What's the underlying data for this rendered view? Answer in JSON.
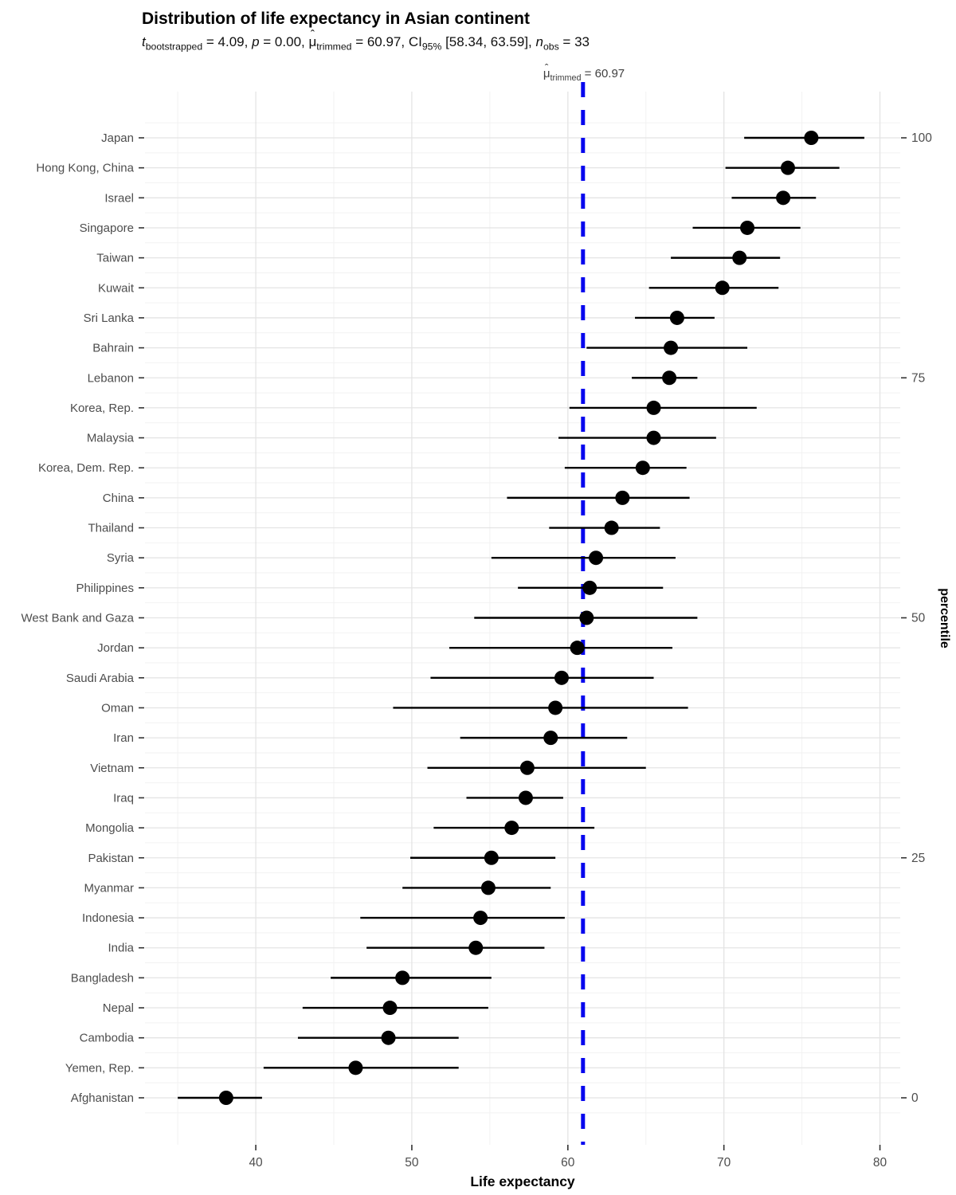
{
  "title": "Distribution of life expectancy in Asian continent",
  "subtitle": {
    "t": "t",
    "t_sub": "bootstrapped",
    "s1": " = 4.09, ",
    "p": "p",
    "s2": " = 0.00, ",
    "mu": "μ",
    "hat": "ˆ",
    "mu_sub": "trimmed",
    "s3": " = 60.97, ",
    "ci": "CI",
    "ci_sub": "95%",
    "s4": " [58.34, 63.59], ",
    "n": "n",
    "n_sub": "obs",
    "s5": " = 33"
  },
  "annotation": {
    "mu": "μ",
    "hat": "ˆ",
    "mu_sub": "trimmed",
    "s": " = 60.97"
  },
  "colors": {
    "point": "#000000",
    "ci_line": "#000000",
    "test_line": "#0707EE",
    "gridline_major": "#e4e4e4",
    "gridline_minor": "#f2f2f2",
    "axis_text": "#4d4d4d",
    "tick": "#333333",
    "axis_title": "#000000"
  },
  "chart_data": {
    "type": "scatter",
    "subtype": "dot-whisker / one-sample test (ggdotplotstats)",
    "title": "Distribution of life expectancy in Asian continent",
    "xlabel": "Life expectancy",
    "ylabel_right": "percentile",
    "x_ticks": [
      40,
      50,
      60,
      70,
      80
    ],
    "x_minor_ticks": [
      35,
      45,
      55,
      65,
      75
    ],
    "xlim": [
      32.9,
      81.3
    ],
    "grid": true,
    "test_line": {
      "label_value": 60.97,
      "style": "dashed"
    },
    "percentile_breaks": [
      {
        "label": "100",
        "row": 0
      },
      {
        "label": "75",
        "row": 8
      },
      {
        "label": "50",
        "row": 16
      },
      {
        "label": "25",
        "row": 24
      },
      {
        "label": "0",
        "row": 32
      }
    ],
    "series": [
      {
        "label": "Japan",
        "value": 75.6,
        "ci": [
          71.3,
          79.0
        ]
      },
      {
        "label": "Hong Kong, China",
        "value": 74.1,
        "ci": [
          70.1,
          77.4
        ]
      },
      {
        "label": "Israel",
        "value": 73.8,
        "ci": [
          70.5,
          75.9
        ]
      },
      {
        "label": "Singapore",
        "value": 71.5,
        "ci": [
          68.0,
          74.9
        ]
      },
      {
        "label": "Taiwan",
        "value": 71.0,
        "ci": [
          66.6,
          73.6
        ]
      },
      {
        "label": "Kuwait",
        "value": 69.9,
        "ci": [
          65.2,
          73.5
        ]
      },
      {
        "label": "Sri Lanka",
        "value": 67.0,
        "ci": [
          64.3,
          69.4
        ]
      },
      {
        "label": "Bahrain",
        "value": 66.6,
        "ci": [
          61.2,
          71.5
        ]
      },
      {
        "label": "Lebanon",
        "value": 66.5,
        "ci": [
          64.1,
          68.3
        ]
      },
      {
        "label": "Korea, Rep.",
        "value": 65.5,
        "ci": [
          60.1,
          72.1
        ]
      },
      {
        "label": "Malaysia",
        "value": 65.5,
        "ci": [
          59.4,
          69.5
        ]
      },
      {
        "label": "Korea, Dem. Rep.",
        "value": 64.8,
        "ci": [
          59.8,
          67.6
        ]
      },
      {
        "label": "China",
        "value": 63.5,
        "ci": [
          56.1,
          67.8
        ]
      },
      {
        "label": "Thailand",
        "value": 62.8,
        "ci": [
          58.8,
          65.9
        ]
      },
      {
        "label": "Syria",
        "value": 61.8,
        "ci": [
          55.1,
          66.9
        ]
      },
      {
        "label": "Philippines",
        "value": 61.4,
        "ci": [
          56.8,
          66.1
        ]
      },
      {
        "label": "West Bank and Gaza",
        "value": 61.2,
        "ci": [
          54.0,
          68.3
        ]
      },
      {
        "label": "Jordan",
        "value": 60.6,
        "ci": [
          52.4,
          66.7
        ]
      },
      {
        "label": "Saudi Arabia",
        "value": 59.6,
        "ci": [
          51.2,
          65.5
        ]
      },
      {
        "label": "Oman",
        "value": 59.2,
        "ci": [
          48.8,
          67.7
        ]
      },
      {
        "label": "Iran",
        "value": 58.9,
        "ci": [
          53.1,
          63.8
        ]
      },
      {
        "label": "Vietnam",
        "value": 57.4,
        "ci": [
          51.0,
          65.0
        ]
      },
      {
        "label": "Iraq",
        "value": 57.3,
        "ci": [
          53.5,
          59.7
        ]
      },
      {
        "label": "Mongolia",
        "value": 56.4,
        "ci": [
          51.4,
          61.7
        ]
      },
      {
        "label": "Pakistan",
        "value": 55.1,
        "ci": [
          49.9,
          59.2
        ]
      },
      {
        "label": "Myanmar",
        "value": 54.9,
        "ci": [
          49.4,
          58.9
        ]
      },
      {
        "label": "Indonesia",
        "value": 54.4,
        "ci": [
          46.7,
          59.8
        ]
      },
      {
        "label": "India",
        "value": 54.1,
        "ci": [
          47.1,
          58.5
        ]
      },
      {
        "label": "Bangladesh",
        "value": 49.4,
        "ci": [
          44.8,
          55.1
        ]
      },
      {
        "label": "Nepal",
        "value": 48.6,
        "ci": [
          43.0,
          54.9
        ]
      },
      {
        "label": "Cambodia",
        "value": 48.5,
        "ci": [
          42.7,
          53.0
        ]
      },
      {
        "label": "Yemen, Rep.",
        "value": 46.4,
        "ci": [
          40.5,
          53.0
        ]
      },
      {
        "label": "Afghanistan",
        "value": 38.1,
        "ci": [
          35.0,
          40.4
        ]
      }
    ]
  }
}
